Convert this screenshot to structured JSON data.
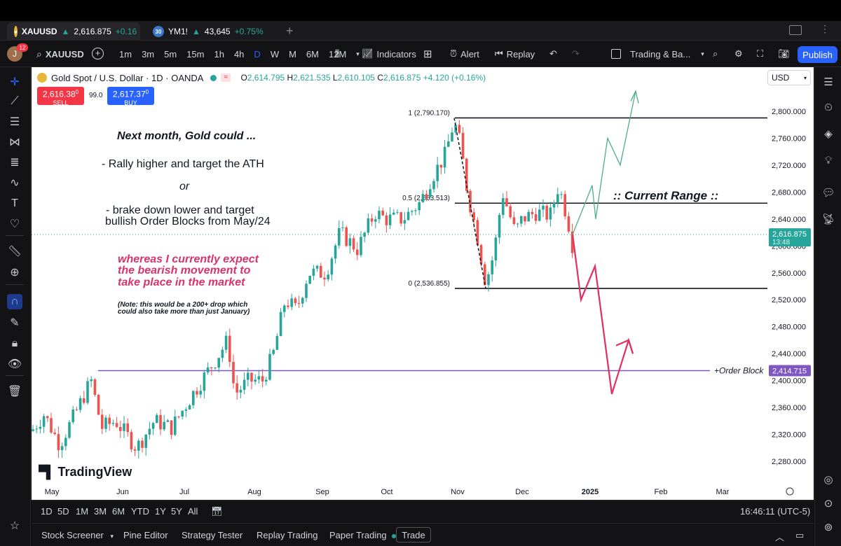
{
  "tabs": [
    {
      "icon_text": "",
      "symbol": "XAUUSD",
      "price": "2,616.875",
      "change": "+0.16"
    },
    {
      "icon_text": "30",
      "symbol": "YM1!",
      "price": "43,645",
      "change": "+0.75%"
    }
  ],
  "toolbar": {
    "avatar_letter": "J",
    "notification_count": "12",
    "symbol": "XAUUSD",
    "intervals": [
      "1m",
      "3m",
      "5m",
      "15m",
      "1h",
      "4h",
      "D",
      "W",
      "M",
      "6M",
      "12M"
    ],
    "selected_interval": "D",
    "indicators_label": "Indicators",
    "alert_label": "Alert",
    "replay_label": "Replay",
    "layout_label": "Trading & Ba...",
    "publish_label": "Publish"
  },
  "legend": {
    "title": "Gold Spot / U.S. Dollar · 1D · OANDA",
    "o": "2,614.795",
    "h": "2,621.535",
    "l": "2,610.105",
    "c": "2,616.875",
    "change": "+4.120 (+0.16%)"
  },
  "trade_boxes": {
    "sell_price": "2,616.38",
    "sell_sup": "0",
    "sell_label": "SELL",
    "spread": "99.0",
    "buy_price": "2,617.37",
    "buy_sup": "0",
    "buy_label": "BUY"
  },
  "currency": "USD",
  "annotations": {
    "headline": "Next month, Gold could ...",
    "option1": "- Rally higher and target the ATH",
    "or": "or",
    "option2_line1": "- brake down lower and target",
    "option2_line2": "bullish Order Blocks from May/24",
    "expect_line1": "whereas I currently expect",
    "expect_line2": "the bearish movement to",
    "expect_line3": "take place in the market",
    "note_line1": "(Note: this would be a 200+ drop which",
    "note_line2": "could also take more than just January)",
    "current_range": ":: Current Range ::",
    "order_block": "+Order Block"
  },
  "branding": {
    "logo_text": "TradingView"
  },
  "price_tags": {
    "current_price": "2,616.875",
    "countdown": "13:48",
    "order_block_price": "2,414.715"
  },
  "colors": {
    "up": "#26a69a",
    "down": "#ef5350",
    "bear_path": "#e0305e",
    "bull_path": "#4caf87",
    "order_block_line": "#7e57c2",
    "annotation_pink": "#d8336a"
  },
  "bottom_ranges": [
    "1D",
    "5D",
    "1M",
    "3M",
    "6M",
    "YTD",
    "1Y",
    "5Y",
    "All"
  ],
  "clock": "16:46:11 (UTC-5)",
  "footer_items": [
    "Stock Screener",
    "Pine Editor",
    "Strategy Tester",
    "Replay Trading",
    "Paper Trading",
    "Trade"
  ],
  "chart_data": {
    "type": "candlestick",
    "title": "Gold Spot / U.S. Dollar · 1D · OANDA",
    "x_ticks": [
      "May",
      "Jun",
      "Jul",
      "Aug",
      "Sep",
      "Oct",
      "Nov",
      "Dec",
      "2025",
      "Feb",
      "Mar"
    ],
    "y_ticks": [
      2800,
      2760,
      2720,
      2680,
      2640,
      2600,
      2560,
      2520,
      2480,
      2440,
      2400,
      2360,
      2320,
      2280
    ],
    "y_tick_labels": [
      "2,800.000",
      "2,760.000",
      "2,720.000",
      "2,680.000",
      "2,640.000",
      "2,600.000",
      "2,560.000",
      "2,520.000",
      "2,480.000",
      "2,440.000",
      "2,400.000",
      "2,360.000",
      "2,320.000",
      "2,280.000"
    ],
    "ylim": [
      2262,
      2841
    ],
    "fib_levels": [
      {
        "label": "1 (2,790.170)",
        "value": 2790.17
      },
      {
        "label": "0.5 (2,663.513)",
        "value": 2663.513
      },
      {
        "label": "0 (2,536.855)",
        "value": 2536.855
      }
    ],
    "order_block_level": 2414.715,
    "current_price": 2616.875,
    "price_path_monthly_close": [
      {
        "x": "May",
        "y": 2327
      },
      {
        "x": "Jun",
        "y": 2326
      },
      {
        "x": "Jul",
        "y": 2447
      },
      {
        "x": "Aug",
        "y": 2503
      },
      {
        "x": "Sep",
        "y": 2635
      },
      {
        "x": "Oct",
        "y": 2744
      },
      {
        "x": "Nov",
        "y": 2650
      },
      {
        "x": "Dec",
        "y": 2617
      }
    ],
    "scenario_bullish": [
      2617,
      2690,
      2640,
      2760,
      2720,
      2830
    ],
    "scenario_bearish": [
      2617,
      2520,
      2570,
      2380,
      2460,
      2440
    ]
  }
}
